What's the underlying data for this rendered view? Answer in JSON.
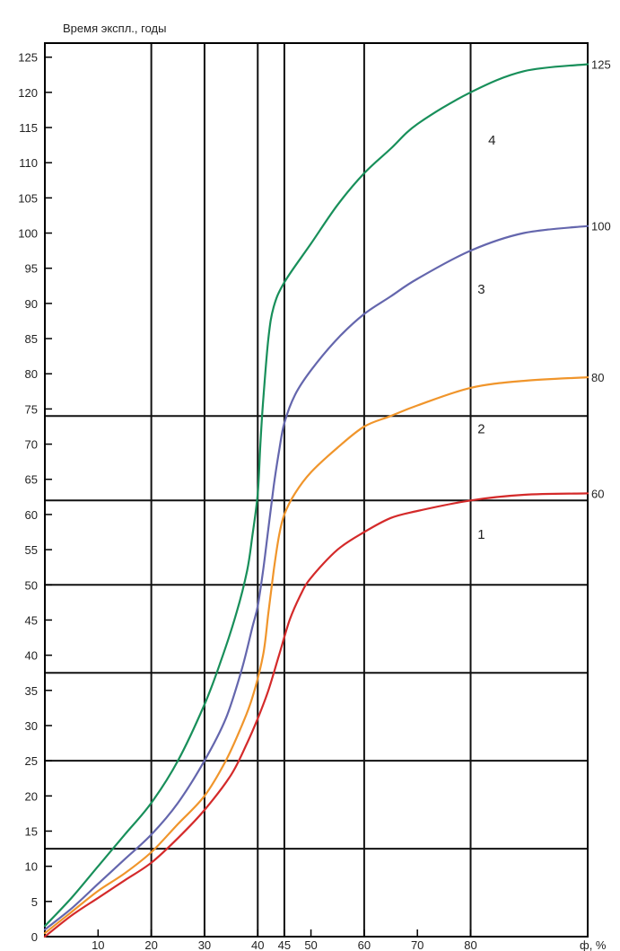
{
  "chart_data": {
    "type": "line",
    "ylabel": "Время экспл., годы",
    "xlabel": "ф, %",
    "xlim": [
      0,
      102
    ],
    "ylim": [
      0,
      127
    ],
    "x_ticks": [
      10,
      20,
      30,
      40,
      45,
      50,
      60,
      70,
      80
    ],
    "y_ticks": [
      0,
      5,
      10,
      15,
      20,
      25,
      30,
      35,
      40,
      45,
      50,
      55,
      60,
      65,
      70,
      75,
      80,
      85,
      90,
      95,
      100,
      105,
      110,
      115,
      120,
      125
    ],
    "vertical_gridlines": [
      20,
      30,
      40,
      45,
      60,
      80
    ],
    "horizontal_gridlines": [
      12.5,
      25,
      37.5,
      50,
      62,
      74
    ],
    "grid": true,
    "series": [
      {
        "name": "1",
        "end_label": "60",
        "color": "#d42a2a",
        "points": [
          [
            0,
            0
          ],
          [
            5,
            3
          ],
          [
            10,
            5.5
          ],
          [
            15,
            8
          ],
          [
            20,
            10.5
          ],
          [
            25,
            14
          ],
          [
            30,
            18
          ],
          [
            35,
            23
          ],
          [
            38,
            27.5
          ],
          [
            40,
            31
          ],
          [
            42,
            35
          ],
          [
            44,
            40
          ],
          [
            46,
            45
          ],
          [
            48,
            48.5
          ],
          [
            50,
            51
          ],
          [
            55,
            55
          ],
          [
            60,
            57.5
          ],
          [
            65,
            59.5
          ],
          [
            70,
            60.5
          ],
          [
            80,
            62
          ],
          [
            90,
            62.8
          ],
          [
            102,
            63
          ]
        ]
      },
      {
        "name": "2",
        "end_label": "80",
        "color": "#f0952b",
        "points": [
          [
            0,
            0.5
          ],
          [
            5,
            3.5
          ],
          [
            10,
            6.5
          ],
          [
            15,
            9
          ],
          [
            20,
            12
          ],
          [
            25,
            16
          ],
          [
            30,
            20
          ],
          [
            34,
            25
          ],
          [
            37,
            30
          ],
          [
            39,
            34
          ],
          [
            41,
            40
          ],
          [
            42,
            46
          ],
          [
            43,
            52
          ],
          [
            44,
            57
          ],
          [
            45,
            60
          ],
          [
            47,
            63
          ],
          [
            50,
            66
          ],
          [
            55,
            69.5
          ],
          [
            60,
            72.5
          ],
          [
            65,
            74
          ],
          [
            70,
            75.5
          ],
          [
            80,
            78
          ],
          [
            90,
            79
          ],
          [
            102,
            79.5
          ]
        ]
      },
      {
        "name": "3",
        "end_label": "100",
        "color": "#6466ad",
        "points": [
          [
            0,
            1
          ],
          [
            5,
            4
          ],
          [
            10,
            7.5
          ],
          [
            15,
            11
          ],
          [
            20,
            14.5
          ],
          [
            25,
            19
          ],
          [
            30,
            25
          ],
          [
            34,
            31
          ],
          [
            37,
            38
          ],
          [
            39,
            44
          ],
          [
            40,
            47
          ],
          [
            41,
            52
          ],
          [
            42,
            58
          ],
          [
            43,
            64
          ],
          [
            44,
            69
          ],
          [
            45,
            73
          ],
          [
            47,
            77
          ],
          [
            50,
            80.5
          ],
          [
            55,
            85
          ],
          [
            60,
            88.5
          ],
          [
            65,
            91
          ],
          [
            70,
            93.5
          ],
          [
            80,
            97.5
          ],
          [
            90,
            100
          ],
          [
            102,
            101
          ]
        ]
      },
      {
        "name": "4",
        "end_label": "125",
        "color": "#188f5a",
        "points": [
          [
            0,
            1.5
          ],
          [
            5,
            5.5
          ],
          [
            10,
            10
          ],
          [
            15,
            14.5
          ],
          [
            20,
            19
          ],
          [
            25,
            25
          ],
          [
            30,
            33
          ],
          [
            33,
            39
          ],
          [
            36,
            46
          ],
          [
            38,
            52
          ],
          [
            39,
            57
          ],
          [
            40,
            63
          ],
          [
            40.5,
            70
          ],
          [
            41,
            76
          ],
          [
            42,
            85
          ],
          [
            43,
            89.5
          ],
          [
            45,
            93
          ],
          [
            50,
            98.5
          ],
          [
            55,
            104
          ],
          [
            60,
            108.5
          ],
          [
            65,
            112
          ],
          [
            70,
            115.5
          ],
          [
            80,
            120
          ],
          [
            90,
            123
          ],
          [
            102,
            124
          ]
        ]
      }
    ]
  }
}
